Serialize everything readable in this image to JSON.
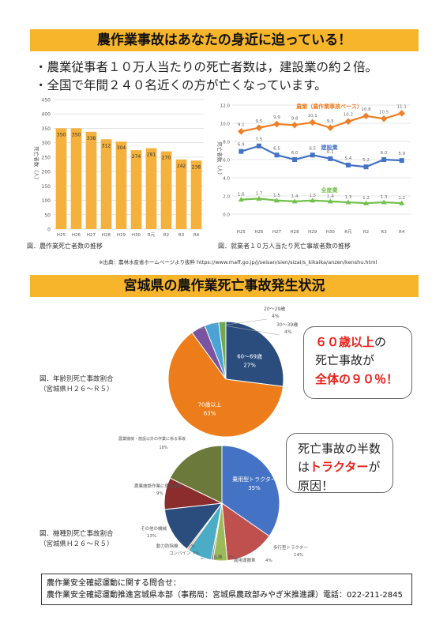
{
  "header": {
    "banner_top": "農作業事故はあなたの身近に迫っている！",
    "bullets": [
      "・農業従事者１０万人当たりの死亡者数は，建設業の約２倍。",
      "・全国で年間２４０名近くの方が亡くなっています。"
    ]
  },
  "chart_data": [
    {
      "type": "bar",
      "title": "",
      "caption": "図．農作業死亡者数の推移",
      "ylabel": "死亡者数（人）",
      "xlabel": "",
      "categories": [
        "H25",
        "H26",
        "H27",
        "H28",
        "H29",
        "H30",
        "R元",
        "R2",
        "R3",
        "R4"
      ],
      "values": [
        350,
        350,
        338,
        312,
        304,
        274,
        281,
        270,
        242,
        238
      ],
      "ylim": [
        0,
        450
      ],
      "yticks": [
        "0",
        "50",
        "100",
        "150",
        "200",
        "250",
        "300",
        "350",
        "400",
        "450"
      ],
      "grid": true,
      "bar_color": "#f5b13d"
    },
    {
      "type": "line",
      "title": "",
      "caption": "図．就業者１０万人当たり死亡事故者数の推移",
      "ylabel": "死亡者数（人）",
      "xlabel": "",
      "categories": [
        "H25",
        "H26",
        "H27",
        "H28",
        "H29",
        "H30",
        "R元",
        "R2",
        "R3",
        "R4"
      ],
      "ylim": [
        0,
        12
      ],
      "yticks": [
        "0.0",
        "2.0",
        "4.0",
        "6.0",
        "8.0",
        "10.0",
        "12.0"
      ],
      "grid": true,
      "series": [
        {
          "name": "農業（農作業事故ベース）",
          "color": "#f07e26",
          "values": [
            9.1,
            9.5,
            9.9,
            9.8,
            10.1,
            9.5,
            10.2,
            10.8,
            10.5,
            11.1
          ],
          "labels": [
            "9.1",
            "9.5",
            "9.9",
            "9.8",
            "10.1",
            "9.5",
            "10.2",
            "10.8",
            "10.5",
            "11.1"
          ]
        },
        {
          "name": "建設業",
          "color": "#4472c4",
          "values": [
            6.9,
            7.5,
            6.5,
            6.0,
            6.5,
            6.1,
            5.4,
            5.2,
            6.0,
            5.9
          ],
          "labels": [
            "6.9",
            "7.5",
            "6.5",
            "6.0",
            "6.5",
            "6.1",
            "5.4",
            "5.2",
            "6.0",
            "5.9"
          ]
        },
        {
          "name": "全産業",
          "color": "#70c04a",
          "values": [
            1.6,
            1.7,
            1.5,
            1.4,
            1.5,
            1.4,
            1.3,
            1.2,
            1.3,
            1.2
          ],
          "labels": [
            "1.6",
            "1.7",
            "1.5",
            "1.4",
            "1.5",
            "1.4",
            "1.3",
            "1.2",
            "1.3",
            "1.2"
          ]
        }
      ]
    },
    {
      "type": "pie",
      "title": "図．年齢別死亡事故割合（宮城県Ｈ２６～Ｒ５）",
      "slices": [
        {
          "label": "60～69歳",
          "pct": "27%",
          "value": 27,
          "color": "#2b4d7e"
        },
        {
          "label": "70歳以上",
          "pct": "63%",
          "value": 63,
          "color": "#ed7d1a"
        },
        {
          "label": "20～29歳",
          "pct": "4%",
          "value": 4,
          "color": "#7a54a0"
        },
        {
          "label": "30～39歳",
          "pct": "4%",
          "value": 4,
          "color": "#4aa3d4"
        },
        {
          "label": "",
          "pct": "",
          "value": 2,
          "color": "#70a858"
        }
      ]
    },
    {
      "type": "pie",
      "title": "図．機種別死亡事故割合（宮城県Ｈ２６～Ｒ５）",
      "slices": [
        {
          "label": "乗用型トラクター",
          "pct": "35%",
          "value": 35,
          "color": "#4472c4"
        },
        {
          "label": "歩行型トラクター",
          "pct": "14%",
          "value": 14,
          "color": "#c0504d"
        },
        {
          "label": "農用運搬車",
          "pct": "4%",
          "value": 4,
          "color": "#9bbb59"
        },
        {
          "label": "動力刈払機",
          "pct": "0%",
          "value": 0.5,
          "color": "#8064a2"
        },
        {
          "label": "コンバイン",
          "pct": "7%",
          "value": 7,
          "color": "#4bacc6"
        },
        {
          "label": "動力防除機",
          "pct": "0%",
          "value": 0.5,
          "color": "#f79646"
        },
        {
          "label": "その他の機械",
          "pct": "13%",
          "value": 13,
          "color": "#2b4d7e"
        },
        {
          "label": "農業施設作業に係る事故",
          "pct": "9%",
          "value": 9,
          "color": "#8b2d2d"
        },
        {
          "label": "農業機械・施設以外の作業に係る事故",
          "pct": "18%",
          "value": 18,
          "color": "#6b7a3a"
        }
      ]
    }
  ],
  "source_note": "※出典：農林水産省ホームページより抜粋 https://www.maff.go.jp/j/seisan/sien/sizai/s_kikaika/anzen/kenshu.html",
  "section2": {
    "banner": "宮城県の農作業死亡事故発生状況",
    "pie1_caption_l1": "図．年齢別死亡事故割合",
    "pie1_caption_l2": "（宮城県Ｈ２６～Ｒ５）",
    "pie2_caption_l1": "図．機種別死亡事故割合",
    "pie2_caption_l2": "（宮城県Ｈ２６～Ｒ５）",
    "bubble1": {
      "l1a": "６０歳以上",
      "l1b": "の",
      "l2": "死亡事故が",
      "l3": "全体の９０％！"
    },
    "bubble2": {
      "l1": "死亡事故の半数",
      "l2a": "は",
      "l2b": "トラクター",
      "l2c": "が",
      "l3": "原因！"
    }
  },
  "contact": {
    "line1": "農作業安全確認運動に関する問合せ：",
    "line2": "農作業安全確認運動推進宮城県本部（事務局：宮城県農政部みやぎ米推進課）電話：022-211-2845"
  }
}
